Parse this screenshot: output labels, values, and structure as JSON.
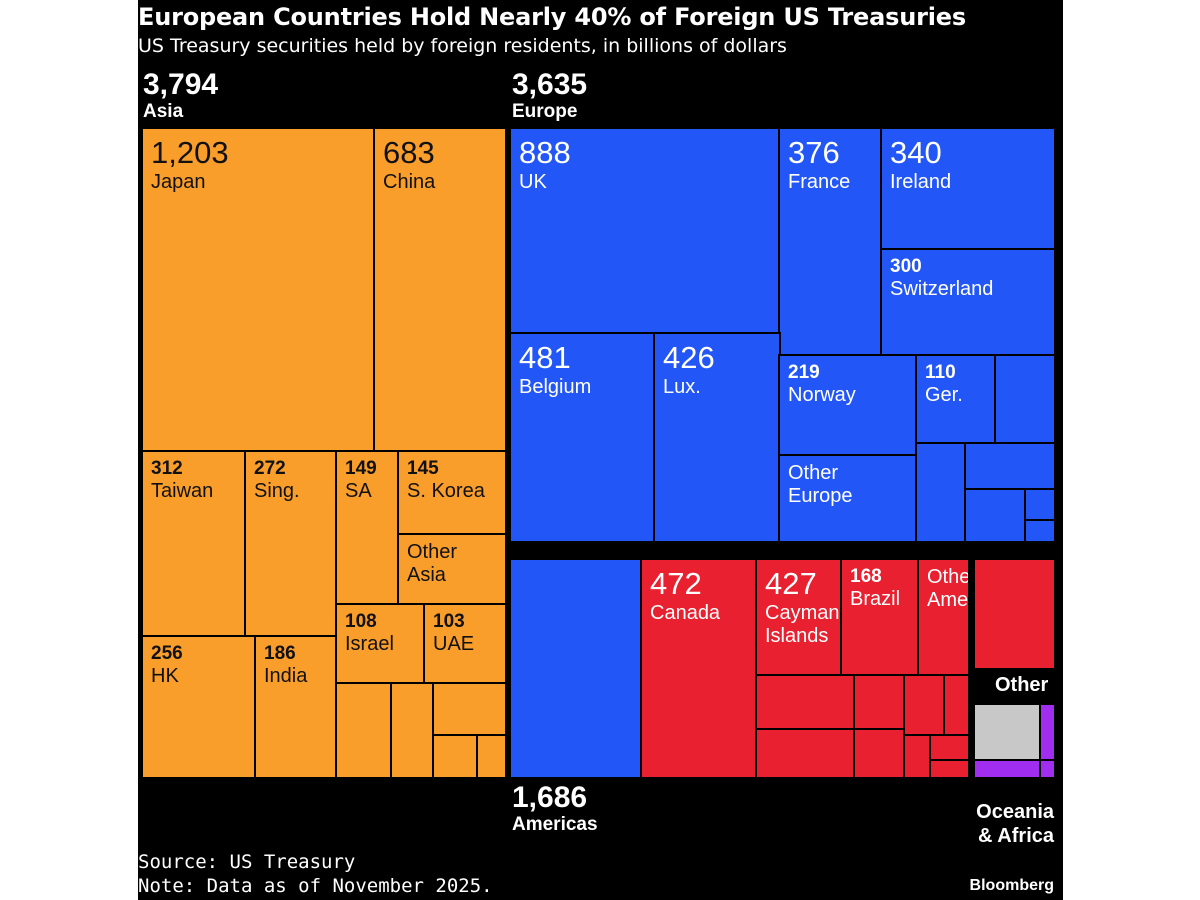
{
  "header": {
    "title": "European Countries Hold Nearly 40% of Foreign US Treasuries",
    "subtitle": "US Treasury securities held by foreign residents, in billions of dollars"
  },
  "footer": {
    "source": "Source: US Treasury",
    "note": "Note: Data as of November 2025.",
    "brand": "Bloomberg"
  },
  "colors": {
    "Asia": "#fa9e2b",
    "Europe": "#2356f6",
    "Americas": "#e8202f",
    "Other": "#c8c8c8",
    "Oceania & Africa": "#a12df0",
    "background": "#000000"
  },
  "groups": {
    "asia": {
      "value": "3,794",
      "name": "Asia"
    },
    "europe": {
      "value": "3,635",
      "name": "Europe"
    },
    "americas": {
      "value": "1,686",
      "name": "Americas"
    },
    "other": {
      "name": "Other"
    },
    "oceania": {
      "name": "Oceania\n& Africa"
    }
  },
  "chart_data": {
    "type": "treemap",
    "title": "European Countries Hold Nearly 40% of Foreign US Treasuries",
    "subtitle": "US Treasury securities held by foreign residents, in billions of dollars",
    "unit": "billions of dollars",
    "groups": [
      {
        "name": "Asia",
        "total": 3794,
        "color": "#fa9e2b",
        "items": [
          {
            "label": "Japan",
            "value": 1203
          },
          {
            "label": "China",
            "value": 683
          },
          {
            "label": "Taiwan",
            "value": 312
          },
          {
            "label": "Sing.",
            "value": 272
          },
          {
            "label": "SA",
            "value": 149
          },
          {
            "label": "S. Korea",
            "value": 145
          },
          {
            "label": "Other Asia"
          },
          {
            "label": "HK",
            "value": 256
          },
          {
            "label": "India",
            "value": 186
          },
          {
            "label": "Israel",
            "value": 108
          },
          {
            "label": "UAE",
            "value": 103
          }
        ]
      },
      {
        "name": "Europe",
        "total": 3635,
        "color": "#2356f6",
        "items": [
          {
            "label": "UK",
            "value": 888
          },
          {
            "label": "France",
            "value": 376
          },
          {
            "label": "Ireland",
            "value": 340
          },
          {
            "label": "Switzerland",
            "value": 300
          },
          {
            "label": "Belgium",
            "value": 481
          },
          {
            "label": "Lux.",
            "value": 426
          },
          {
            "label": "Norway",
            "value": 219
          },
          {
            "label": "Ger.",
            "value": 110
          },
          {
            "label": "Other Europe"
          }
        ]
      },
      {
        "name": "Americas",
        "total": 1686,
        "color": "#e8202f",
        "items": [
          {
            "label": "Canada",
            "value": 472
          },
          {
            "label": "Cayman Islands",
            "value": 427
          },
          {
            "label": "Brazil",
            "value": 168
          },
          {
            "label": "Other Amer."
          }
        ]
      },
      {
        "name": "Other",
        "color": "#c8c8c8",
        "items": []
      },
      {
        "name": "Oceania & Africa",
        "color": "#a12df0",
        "items": []
      }
    ]
  },
  "treemap": [
    {
      "g": "Asia",
      "value": "1,203",
      "label": "Japan",
      "size": "big"
    },
    {
      "g": "Asia",
      "value": "683",
      "label": "China",
      "size": "big"
    },
    {
      "g": "Asia",
      "value": "312",
      "label": "Taiwan",
      "size": "med"
    },
    {
      "g": "Asia",
      "value": "272",
      "label": "Sing.",
      "size": "med"
    },
    {
      "g": "Asia",
      "value": "149",
      "label": "SA",
      "size": "med"
    },
    {
      "g": "Asia",
      "value": "145",
      "label": "S. Korea",
      "size": "med"
    },
    {
      "g": "Asia",
      "value": "",
      "label": "Other\nAsia",
      "size": "med"
    },
    {
      "g": "Asia",
      "value": "256",
      "label": "HK",
      "size": "med"
    },
    {
      "g": "Asia",
      "value": "186",
      "label": "India",
      "size": "med"
    },
    {
      "g": "Asia",
      "value": "108",
      "label": "Israel",
      "size": "med"
    },
    {
      "g": "Asia",
      "value": "103",
      "label": "UAE",
      "size": "med"
    },
    {
      "g": "Asia",
      "value": "",
      "label": "",
      "size": "med"
    },
    {
      "g": "Asia",
      "value": "",
      "label": "",
      "size": "med"
    },
    {
      "g": "Asia",
      "value": "",
      "label": "",
      "size": "med"
    },
    {
      "g": "Asia",
      "value": "",
      "label": "",
      "size": "med"
    },
    {
      "g": "Asia",
      "value": "",
      "label": "",
      "size": "med"
    },
    {
      "g": "Europe",
      "value": "888",
      "label": "UK",
      "size": "big"
    },
    {
      "g": "Europe",
      "value": "376",
      "label": "France",
      "size": "big"
    },
    {
      "g": "Europe",
      "value": "340",
      "label": "Ireland",
      "size": "big"
    },
    {
      "g": "Europe",
      "value": "300",
      "label": "Switzerland",
      "size": "med"
    },
    {
      "g": "Europe",
      "value": "481",
      "label": "Belgium",
      "size": "big"
    },
    {
      "g": "Europe",
      "value": "426",
      "label": "Lux.",
      "size": "big"
    },
    {
      "g": "Europe",
      "value": "219",
      "label": "Norway",
      "size": "med"
    },
    {
      "g": "Europe",
      "value": "110",
      "label": "Ger.",
      "size": "med"
    },
    {
      "g": "Europe",
      "value": "",
      "label": "",
      "size": "med"
    },
    {
      "g": "Europe",
      "value": "",
      "label": "Other\nEurope",
      "size": "med"
    },
    {
      "g": "Europe",
      "value": "",
      "label": "",
      "size": "med"
    },
    {
      "g": "Europe",
      "value": "",
      "label": "",
      "size": "med"
    },
    {
      "g": "Europe",
      "value": "",
      "label": "",
      "size": "med"
    },
    {
      "g": "Europe",
      "value": "",
      "label": "",
      "size": "med"
    },
    {
      "g": "Europe",
      "value": "",
      "label": "",
      "size": "med"
    },
    {
      "g": "Europe",
      "value": "",
      "label": "",
      "size": "med"
    },
    {
      "g": "Americas",
      "value": "472",
      "label": "Canada",
      "size": "big"
    },
    {
      "g": "Americas",
      "value": "427",
      "label": "Cayman\nIslands",
      "size": "big"
    },
    {
      "g": "Americas",
      "value": "168",
      "label": "Brazil",
      "size": "med"
    },
    {
      "g": "Americas",
      "value": "",
      "label": "Other\nAmer.",
      "size": "med"
    },
    {
      "g": "Americas",
      "value": "",
      "label": "",
      "size": "med"
    },
    {
      "g": "Americas",
      "value": "",
      "label": "",
      "size": "med"
    },
    {
      "g": "Americas",
      "value": "",
      "label": "",
      "size": "med"
    },
    {
      "g": "Americas",
      "value": "",
      "label": "",
      "size": "med"
    },
    {
      "g": "Americas",
      "value": "",
      "label": "",
      "size": "med"
    },
    {
      "g": "Americas",
      "value": "",
      "label": "",
      "size": "med"
    },
    {
      "g": "Americas",
      "value": "",
      "label": "",
      "size": "med"
    },
    {
      "g": "Americas",
      "value": "",
      "label": "",
      "size": "med"
    },
    {
      "g": "Americas",
      "value": "",
      "label": "",
      "size": "med"
    },
    {
      "g": "Americas",
      "value": "",
      "label": "",
      "size": "med"
    },
    {
      "g": "Other",
      "value": "",
      "label": "",
      "size": "med"
    },
    {
      "g": "Oceania & Africa",
      "value": "",
      "label": "",
      "size": "med"
    },
    {
      "g": "Oceania & Africa",
      "value": "",
      "label": "",
      "size": "med"
    },
    {
      "g": "Oceania & Africa",
      "value": "",
      "label": "",
      "size": "med"
    },
    {
      "g": "Oceania & Africa",
      "value": "",
      "label": "",
      "size": "med"
    }
  ]
}
